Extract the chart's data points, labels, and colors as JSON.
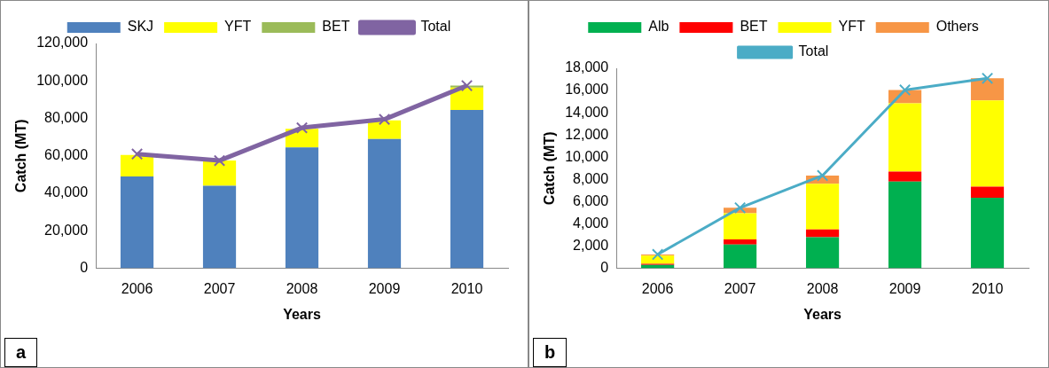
{
  "chart_data": [
    {
      "type": "bar",
      "stacked": true,
      "xlabel": "Years",
      "ylabel": "Catch (MT)",
      "categories": [
        "2006",
        "2007",
        "2008",
        "2009",
        "2010"
      ],
      "series": [
        {
          "name": "SKJ",
          "color": "#4f81bd",
          "values": [
            49000,
            44000,
            64500,
            69000,
            84500
          ]
        },
        {
          "name": "YFT",
          "color": "#ffff00",
          "values": [
            11500,
            13500,
            10000,
            10000,
            12000
          ]
        },
        {
          "name": "BET",
          "color": "#9bbb59",
          "values": [
            null,
            0,
            null,
            null,
            1000
          ]
        },
        {
          "name": "Total",
          "type": "line",
          "color": "#8064a2",
          "values": [
            61000,
            57500,
            75000,
            79500,
            97500
          ]
        }
      ],
      "ylim": [
        0,
        120000
      ],
      "yticks": [
        0,
        {
          "value": 20000,
          "label": "20,000"
        },
        {
          "value": 40000,
          "label": "40,000"
        },
        {
          "value": 60000,
          "label": "60,000"
        },
        {
          "value": 80000,
          "label": "80,000"
        },
        {
          "value": 100000,
          "label": "100,000"
        },
        {
          "value": 120000,
          "label": "120,000"
        }
      ],
      "grid": false,
      "legend": "top",
      "marker": "cross",
      "annotations": [
        "a"
      ]
    },
    {
      "type": "bar",
      "stacked": true,
      "xlabel": "Years",
      "ylabel": "Catch (MT)",
      "categories": [
        "2006",
        "2007",
        "2008",
        "2009",
        "2010"
      ],
      "series": [
        {
          "name": "Alb",
          "color": "#00b050",
          "values": [
            300,
            2150,
            2800,
            7800,
            6350
          ]
        },
        {
          "name": "BET",
          "color": "#ff0000",
          "values": [
            100,
            450,
            700,
            900,
            1000
          ]
        },
        {
          "name": "YFT",
          "color": "#ffff00",
          "values": [
            750,
            2350,
            4100,
            6150,
            7750
          ]
        },
        {
          "name": "Others",
          "color": "#f79646",
          "values": [
            100,
            500,
            750,
            1200,
            2000
          ]
        },
        {
          "name": "Total",
          "type": "line",
          "color": "#4bacc6",
          "values": [
            1250,
            5450,
            8350,
            16050,
            17100
          ]
        }
      ],
      "ylim": [
        0,
        18000
      ],
      "yticks": [
        0,
        {
          "value": 2000,
          "label": "2,000"
        },
        {
          "value": 4000,
          "label": "4,000"
        },
        {
          "value": 6000,
          "label": "6,000"
        },
        {
          "value": 8000,
          "label": "8,000"
        },
        {
          "value": 10000,
          "label": "10,000"
        },
        {
          "value": 12000,
          "label": "12,000"
        },
        {
          "value": 14000,
          "label": "14,000"
        },
        {
          "value": 16000,
          "label": "16,000"
        },
        {
          "value": 18000,
          "label": "18,000"
        }
      ],
      "grid": false,
      "legend": "top",
      "marker": "cross",
      "annotations": [
        "b"
      ]
    }
  ]
}
